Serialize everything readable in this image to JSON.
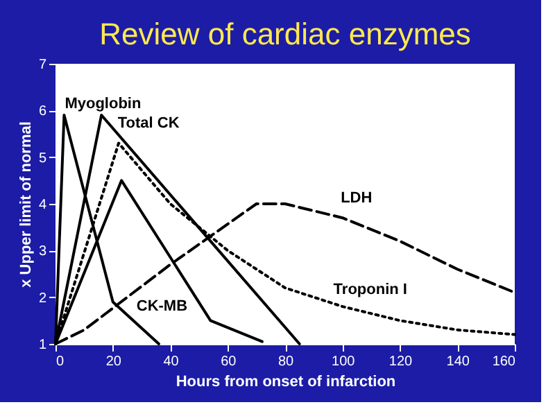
{
  "chart_data": {
    "type": "line",
    "title": "Review of cardiac enzymes",
    "xlabel": "Hours from onset of infarction",
    "ylabel": "x Upper limit of normal",
    "xlim": [
      0,
      160
    ],
    "ylim": [
      1,
      7
    ],
    "xticks": [
      0,
      20,
      40,
      60,
      80,
      100,
      120,
      140,
      160
    ],
    "yticks": [
      1,
      2,
      3,
      4,
      5,
      6,
      7
    ],
    "grid": false,
    "legend": false,
    "marker": "none",
    "series": [
      {
        "name": "Myoglobin",
        "color": "#000000",
        "line_style": "solid",
        "x": [
          0,
          3,
          20,
          36
        ],
        "values": [
          1,
          5.9,
          1.9,
          1
        ]
      },
      {
        "name": "Total CK",
        "color": "#000000",
        "line_style": "solid",
        "x": [
          0,
          16,
          85
        ],
        "values": [
          1,
          5.9,
          1
        ]
      },
      {
        "name": "CK-MB",
        "color": "#000000",
        "line_style": "solid",
        "x": [
          0,
          23,
          54,
          72
        ],
        "values": [
          1,
          4.5,
          1.5,
          1.05
        ]
      },
      {
        "name": "Troponin I",
        "color": "#000000",
        "line_style": "dotted",
        "x": [
          0,
          22,
          40,
          60,
          80,
          100,
          120,
          140,
          160
        ],
        "values": [
          1,
          5.3,
          4,
          3,
          2.2,
          1.8,
          1.5,
          1.3,
          1.2
        ]
      },
      {
        "name": "LDH",
        "color": "#000000",
        "line_style": "dashed",
        "x": [
          0,
          10,
          40,
          70,
          80,
          100,
          120,
          140,
          160
        ],
        "values": [
          1,
          1.3,
          2.7,
          4,
          4,
          3.7,
          3.2,
          2.6,
          2.1
        ]
      }
    ]
  }
}
